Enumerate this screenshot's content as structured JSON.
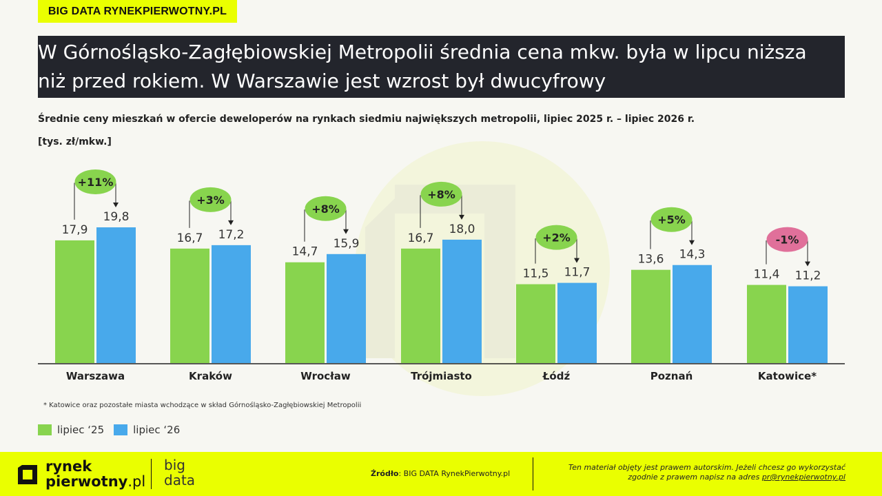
{
  "tag": "BIG DATA RYNEKPIERWOTNY.PL",
  "title": "W Górnośląsko-Zagłębiowskiej Metropolii średnia cena mkw. była w lipcu niższa niż przed rokiem. W Warszawie jest wzrost był dwucyfrowy",
  "subtitle": "Średnie ceny mieszkań w ofercie deweloperów na rynkach siedmiu największych metropolii, lipiec 2025 r. – lipiec 2026 r.",
  "unit": "[tys. zł/mkw.]",
  "footnote": "* Katowice oraz pozostałe miasta wchodzące w skład Górnośląsko-Zagłębiowskiej Metropolii",
  "chart_data": {
    "type": "bar",
    "categories": [
      "Warszawa",
      "Kraków",
      "Wrocław",
      "Trójmiasto",
      "Łódź",
      "Poznań",
      "Katowice*"
    ],
    "series": [
      {
        "name": "lipiec ‘25",
        "values": [
          17.9,
          16.7,
          14.7,
          16.7,
          11.5,
          13.6,
          11.4
        ],
        "labels": [
          "17,9",
          "16,7",
          "14,7",
          "16,7",
          "11,5",
          "13,6",
          "11,4"
        ],
        "color": "#88d44e"
      },
      {
        "name": "lipiec ‘26",
        "values": [
          19.8,
          17.2,
          15.9,
          18.0,
          11.7,
          14.3,
          11.2
        ],
        "labels": [
          "19,8",
          "17,2",
          "15,9",
          "18,0",
          "11,7",
          "14,3",
          "11,2"
        ],
        "color": "#48a9eb"
      }
    ],
    "changes": [
      {
        "label": "+11%",
        "color": "#88d44e"
      },
      {
        "label": "+3%",
        "color": "#88d44e"
      },
      {
        "label": "+8%",
        "color": "#88d44e"
      },
      {
        "label": "+8%",
        "color": "#88d44e"
      },
      {
        "label": "+2%",
        "color": "#88d44e"
      },
      {
        "label": "+5%",
        "color": "#88d44e"
      },
      {
        "label": "-1%",
        "color": "#e0709a"
      }
    ],
    "ylim": [
      0,
      19.8
    ],
    "grid": false,
    "legend_position": "bottom-left"
  },
  "legend": {
    "item1": "lipiec ‘25",
    "item2": "lipiec ‘26",
    "color1": "#88d44e",
    "color2": "#48a9eb"
  },
  "footer": {
    "logo_line1": "rynek",
    "logo_line2_bold": "pierwotny",
    "logo_line2_light": ".pl",
    "big_line1": "big",
    "big_line2": "data",
    "source_label": "Źródło",
    "source_text": ": BIG DATA RynekPierwotny.pl",
    "copyright_line1": "Ten materiał objęty jest prawem autorskim. Jeżeli chcesz go wykorzystać",
    "copyright_line2": "zgodnie z prawem napisz na adres ",
    "copyright_email": "pr@rynekpierwotny.pl"
  },
  "colors": {
    "accent": "#eaff00",
    "title_bg": "#23252c"
  }
}
